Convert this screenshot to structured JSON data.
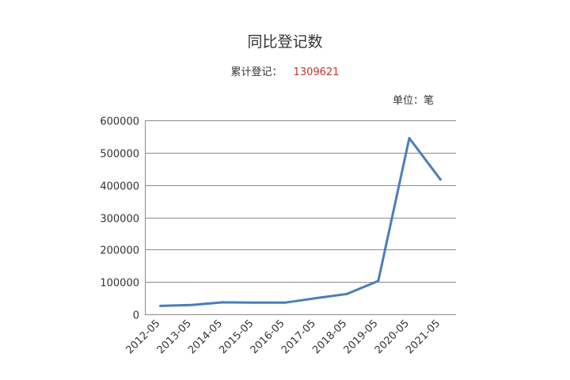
{
  "title": "同比登记数",
  "cumulative": {
    "label": "累计登记：",
    "value": "1309621"
  },
  "unit": "单位：笔",
  "colors": {
    "line": "#4a7ebb",
    "grid": "#8c8c8c",
    "highlight": "#c23531"
  },
  "chart_data": {
    "type": "line",
    "title": "同比登记数",
    "xlabel": "",
    "ylabel": "",
    "categories": [
      "2012-05",
      "2013-05",
      "2014-05",
      "2015-05",
      "2016-05",
      "2017-05",
      "2018-05",
      "2019-05",
      "2020-05",
      "2021-05"
    ],
    "series": [
      {
        "values": [
          26000,
          29000,
          37000,
          36000,
          36000,
          50000,
          63000,
          103000,
          545000,
          417000
        ]
      }
    ],
    "ylim": [
      0,
      600000
    ],
    "yticks": [
      "0",
      "100000",
      "200000",
      "300000",
      "400000",
      "500000",
      "600000"
    ],
    "grid": true,
    "legend": "none"
  }
}
